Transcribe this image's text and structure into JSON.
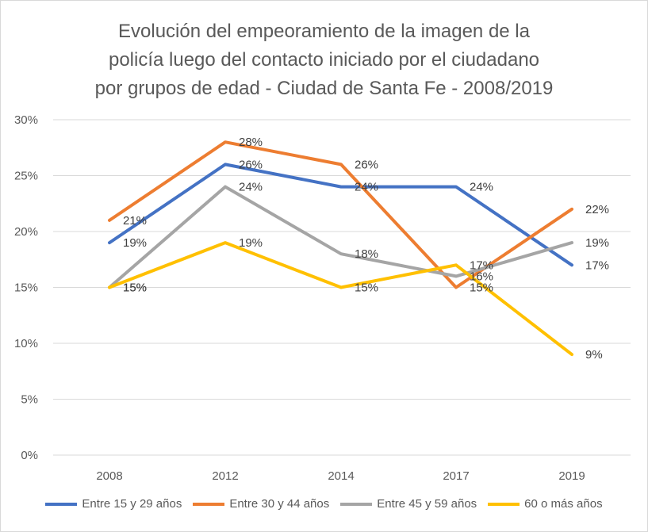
{
  "chart_data": {
    "type": "line",
    "title_lines": [
      "Evolución del empeoramiento de la imagen de la",
      "policía luego del contacto iniciado por el ciudadano",
      "por grupos de edad - Ciudad de Santa Fe - 2008/2019"
    ],
    "categories": [
      "2008",
      "2012",
      "2014",
      "2017",
      "2019"
    ],
    "ylim": [
      0,
      30
    ],
    "yticks": [
      0,
      5,
      10,
      15,
      20,
      25,
      30
    ],
    "ytick_labels": [
      "0%",
      "5%",
      "10%",
      "15%",
      "20%",
      "25%",
      "30%"
    ],
    "grid": true,
    "legend_position": "bottom",
    "series": [
      {
        "name": "Entre 15 y 29 años",
        "color": "#4472c4",
        "values": [
          19,
          26,
          24,
          24,
          17
        ],
        "labels": [
          "19%",
          "26%",
          "24%",
          "24%",
          "17%"
        ]
      },
      {
        "name": "Entre 30 y 44 años",
        "color": "#ed7d31",
        "values": [
          21,
          28,
          26,
          15,
          22
        ],
        "labels": [
          "21%",
          "28%",
          "26%",
          "15%",
          "22%"
        ]
      },
      {
        "name": "Entre 45 y 59 años",
        "color": "#a5a5a5",
        "values": [
          15,
          24,
          18,
          16,
          19
        ],
        "labels": [
          "15%",
          "24%",
          "18%",
          "16%",
          "19%"
        ]
      },
      {
        "name": "60 o más años",
        "color": "#ffc000",
        "values": [
          15,
          19,
          15,
          17,
          9
        ],
        "labels": [
          "15%",
          "19%",
          "15%",
          "17%",
          "9%"
        ]
      }
    ]
  }
}
